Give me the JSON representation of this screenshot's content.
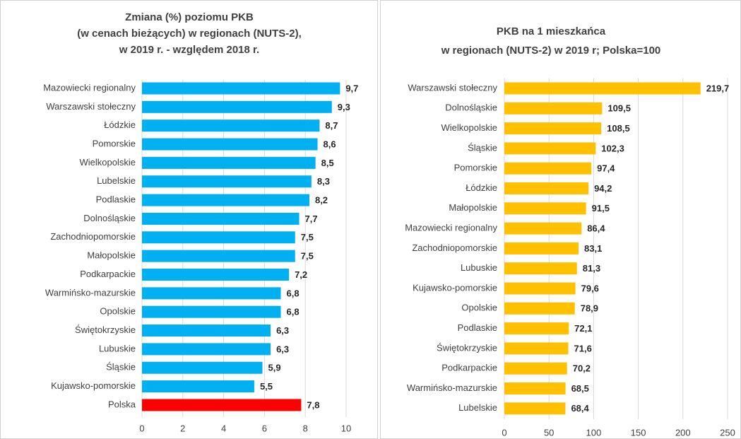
{
  "chart_data": [
    {
      "type": "bar",
      "orientation": "horizontal",
      "title": [
        "Zmiana (%) poziomu PKB",
        "(w cenach bieżących) w regionach (NUTS-2),",
        "w 2019 r. - względem 2018 r."
      ],
      "categories": [
        "Mazowiecki regionalny",
        "Warszawski stołeczny",
        "Łódzkie",
        "Pomorskie",
        "Wielkopolskie",
        "Lubelskie",
        "Podlaskie",
        "Dolnośląskie",
        "Zachodniopomorskie",
        "Małopolskie",
        "Podkarpackie",
        "Warmińsko-mazurskie",
        "Opolskie",
        "Świętokrzyskie",
        "Lubuskie",
        "Śląskie",
        "Kujawsko-pomorskie",
        "Polska"
      ],
      "values": [
        9.7,
        9.3,
        8.7,
        8.6,
        8.5,
        8.3,
        8.2,
        7.7,
        7.5,
        7.5,
        7.2,
        6.8,
        6.8,
        6.3,
        6.3,
        5.9,
        5.5,
        7.8
      ],
      "value_labels": [
        "9,7",
        "9,3",
        "8,7",
        "8,6",
        "8,5",
        "8,3",
        "8,2",
        "7,7",
        "7,5",
        "7,5",
        "7,2",
        "6,8",
        "6,8",
        "6,3",
        "6,3",
        "5,9",
        "5,5",
        "7,8"
      ],
      "colors": [
        "#00b0f0",
        "#00b0f0",
        "#00b0f0",
        "#00b0f0",
        "#00b0f0",
        "#00b0f0",
        "#00b0f0",
        "#00b0f0",
        "#00b0f0",
        "#00b0f0",
        "#00b0f0",
        "#00b0f0",
        "#00b0f0",
        "#00b0f0",
        "#00b0f0",
        "#00b0f0",
        "#00b0f0",
        "#ff0000"
      ],
      "xlim": [
        0,
        10
      ],
      "xticks": [
        0,
        2,
        4,
        6,
        8,
        10
      ],
      "grid": true
    },
    {
      "type": "bar",
      "orientation": "horizontal",
      "title": [
        "PKB na 1 mieszkańca",
        "w regionach (NUTS-2) w 2019 r; Polska=100"
      ],
      "categories": [
        "Warszawski stołeczny",
        "Dolnośląskie",
        "Wielkopolskie",
        "Śląskie",
        "Pomorskie",
        "Łódzkie",
        "Małopolskie",
        "Mazowiecki regionalny",
        "Zachodniopomorskie",
        "Lubuskie",
        "Kujawsko-pomorskie",
        "Opolskie",
        "Podlaskie",
        "Świętokrzyskie",
        "Podkarpackie",
        "Warmińsko-mazurskie",
        "Lubelskie"
      ],
      "values": [
        219.7,
        109.5,
        108.5,
        102.3,
        97.4,
        94.2,
        91.5,
        86.4,
        83.1,
        81.3,
        79.6,
        78.9,
        72.1,
        71.6,
        70.2,
        68.5,
        68.4
      ],
      "value_labels": [
        "219,7",
        "109,5",
        "108,5",
        "102,3",
        "97,4",
        "94,2",
        "91,5",
        "86,4",
        "83,1",
        "81,3",
        "79,6",
        "78,9",
        "72,1",
        "71,6",
        "70,2",
        "68,5",
        "68,4"
      ],
      "color": "#ffc000",
      "xlim": [
        0,
        250
      ],
      "xticks": [
        0,
        50,
        100,
        150,
        200,
        250
      ],
      "grid": true
    }
  ]
}
